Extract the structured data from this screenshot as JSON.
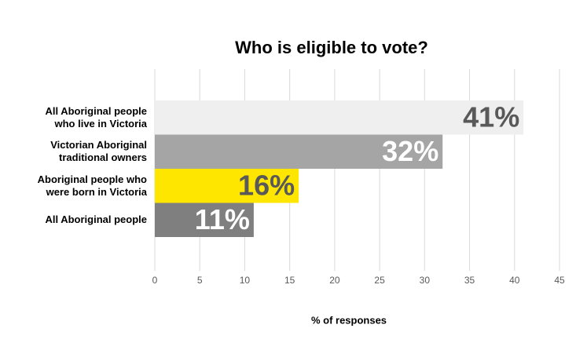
{
  "chart_data": {
    "type": "bar",
    "orientation": "horizontal",
    "title": "Who is eligible to vote?",
    "categories": [
      "All Aboriginal people\nwho live in Victoria",
      "Victorian Aboriginal\ntraditional owners",
      "Aboriginal people who\nwere born in Victoria",
      "All Aboriginal people"
    ],
    "values": [
      41,
      32,
      16,
      11
    ],
    "value_labels": [
      "41%",
      "32%",
      "16%",
      "11%"
    ],
    "colors": [
      "#efefef",
      "#a5a5a5",
      "#ffe600",
      "#7f7f7f"
    ],
    "value_label_colors": [
      "#595959",
      "#ffffff",
      "#595959",
      "#ffffff"
    ],
    "xlabel": "% of responses",
    "xlim": [
      0,
      45
    ],
    "xticks": [
      0,
      5,
      10,
      15,
      20,
      25,
      30,
      35,
      40,
      45
    ],
    "grid": true
  }
}
